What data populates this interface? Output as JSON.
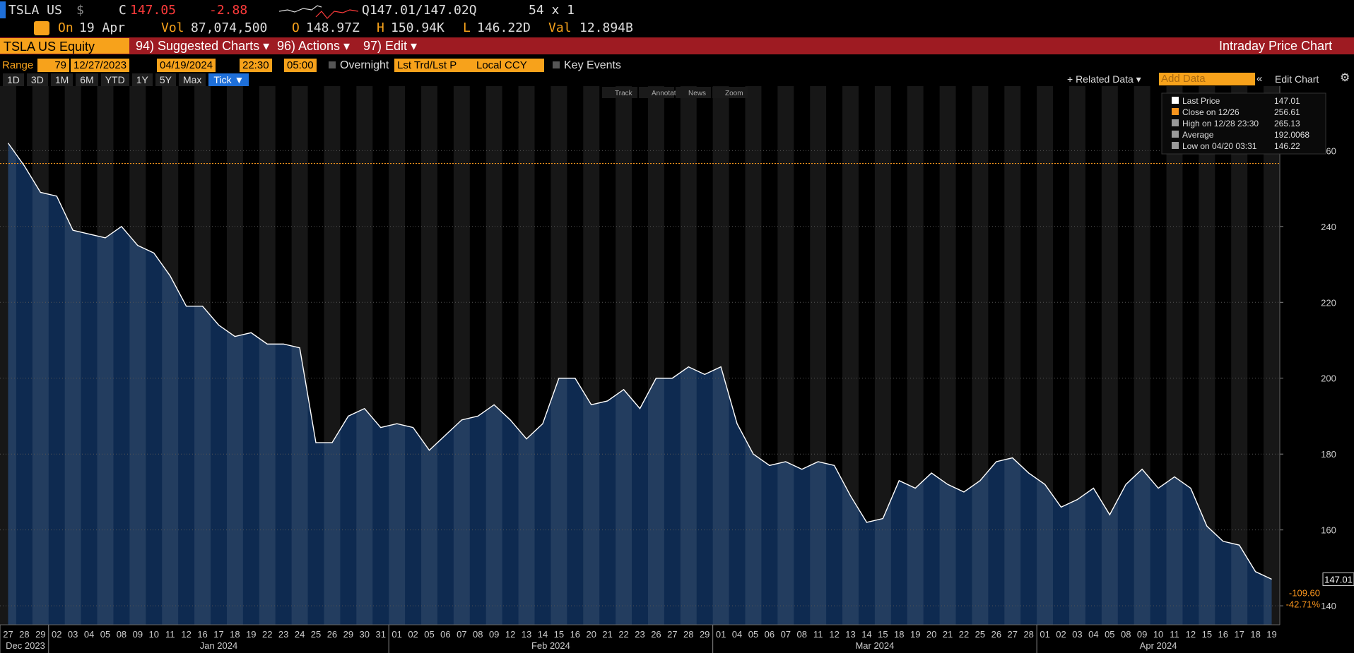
{
  "header": {
    "ticker": "TSLA US",
    "currency": "$",
    "close_label": "C",
    "close": "147.05",
    "change": "-2.88",
    "quote": "Q147.01/147.02Q",
    "size": "54 x 1",
    "date_label": "On",
    "date": "19 Apr",
    "stats": [
      {
        "label": "Vol",
        "value": "87,074,500"
      },
      {
        "label": "O",
        "value": "148.97Z"
      },
      {
        "label": "H",
        "value": "150.94K"
      },
      {
        "label": "L",
        "value": "146.22D"
      },
      {
        "label": "Val",
        "value": "12.894B"
      }
    ]
  },
  "menu": {
    "security": "TSLA US Equity",
    "items": [
      "94) Suggested Charts ▾",
      "96) Actions ▾",
      "97) Edit ▾"
    ],
    "title": "Intraday Price Chart"
  },
  "controls": {
    "range_label": "Range",
    "range": "79",
    "start": "12/27/2023",
    "end": "04/19/2024",
    "time_start": "22:30",
    "time_end": "05:00",
    "overnight": "Overnight",
    "price_type": "Lst Trd/Lst P",
    "currency": "Local CCY",
    "key_events": "Key Events",
    "periods": [
      "1D",
      "3D",
      "1M",
      "6M",
      "YTD",
      "1Y",
      "5Y",
      "Max"
    ],
    "active_period": "Tick ▼",
    "related": "+ Related Data ▾",
    "add_data": "Add Data",
    "edit_chart": "Edit Chart"
  },
  "chart": {
    "type": "area",
    "tools": [
      "Track",
      "Annotate",
      "News",
      "Zoom"
    ],
    "categories": [
      "27",
      "28",
      "29",
      "02",
      "03",
      "04",
      "05",
      "08",
      "09",
      "10",
      "11",
      "12",
      "16",
      "17",
      "18",
      "19",
      "22",
      "23",
      "24",
      "25",
      "26",
      "29",
      "30",
      "31",
      "01",
      "02",
      "05",
      "06",
      "07",
      "08",
      "09",
      "12",
      "13",
      "14",
      "15",
      "16",
      "20",
      "21",
      "22",
      "23",
      "26",
      "27",
      "28",
      "29",
      "01",
      "04",
      "05",
      "06",
      "07",
      "08",
      "11",
      "12",
      "13",
      "14",
      "15",
      "18",
      "19",
      "20",
      "21",
      "22",
      "25",
      "26",
      "27",
      "28",
      "01",
      "02",
      "03",
      "04",
      "05",
      "08",
      "09",
      "10",
      "11",
      "12",
      "15",
      "16",
      "17",
      "18",
      "19"
    ],
    "values": [
      262,
      256,
      249,
      248,
      239,
      238,
      237,
      240,
      235,
      233,
      227,
      219,
      219,
      214,
      211,
      212,
      209,
      209,
      208,
      183,
      183,
      190,
      192,
      187,
      188,
      187,
      181,
      185,
      189,
      190,
      193,
      189,
      184,
      188,
      200,
      200,
      193,
      194,
      197,
      192,
      200,
      200,
      203,
      201,
      203,
      188,
      180,
      177,
      178,
      176,
      178,
      177,
      169,
      162,
      163,
      173,
      171,
      175,
      172,
      170,
      173,
      178,
      179,
      175,
      172,
      166,
      168,
      171,
      164,
      172,
      176,
      171,
      174,
      171,
      161,
      157,
      156,
      149,
      147
    ],
    "months": [
      "Dec 2023",
      "Jan 2024",
      "Feb 2024",
      "Mar 2024",
      "Apr 2024"
    ],
    "color": "#0e2a50",
    "line_color": "#ffffff",
    "ylim": [
      135,
      277
    ],
    "yticks": [
      140,
      160,
      180,
      200,
      220,
      240,
      260
    ],
    "grid": true,
    "reference_line": {
      "value": 256.61,
      "color": "#f7941d"
    },
    "legend": [
      {
        "label": "Last Price",
        "value": 147.01,
        "color": "#ffffff"
      },
      {
        "label": "Close on 12/26",
        "value": 256.61,
        "color": "#f7941d"
      },
      {
        "label": "High on 12/28 23:30",
        "value": 265.13,
        "color": "#999999"
      },
      {
        "label": "Average",
        "value": 192.0068,
        "color": "#999999"
      },
      {
        "label": "Low on 04/20 03:31",
        "value": 146.22,
        "color": "#999999"
      }
    ],
    "change": "-109.60",
    "change_pct": "-42.71%"
  }
}
